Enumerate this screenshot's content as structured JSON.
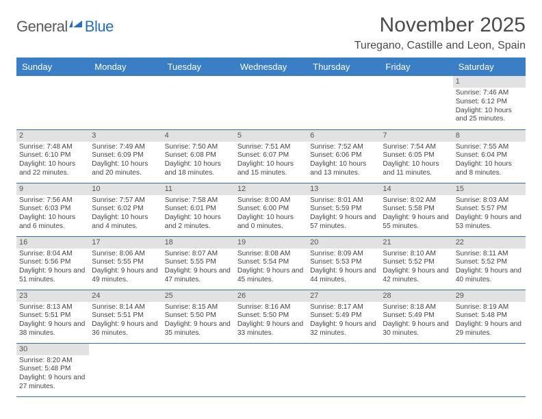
{
  "logo": {
    "part1": "General",
    "part2": "Blue"
  },
  "title": "November 2025",
  "location": "Turegano, Castille and Leon, Spain",
  "dayHeaders": [
    "Sunday",
    "Monday",
    "Tuesday",
    "Wednesday",
    "Thursday",
    "Friday",
    "Saturday"
  ],
  "colors": {
    "headerBg": "#3a7fc5",
    "accent": "#2a6db8",
    "dayBarBg": "#e2e2e2"
  },
  "weeks": [
    [
      null,
      null,
      null,
      null,
      null,
      null,
      {
        "n": "1",
        "sunrise": "7:46 AM",
        "sunset": "6:12 PM",
        "daylight": "10 hours and 25 minutes."
      }
    ],
    [
      {
        "n": "2",
        "sunrise": "7:48 AM",
        "sunset": "6:10 PM",
        "daylight": "10 hours and 22 minutes."
      },
      {
        "n": "3",
        "sunrise": "7:49 AM",
        "sunset": "6:09 PM",
        "daylight": "10 hours and 20 minutes."
      },
      {
        "n": "4",
        "sunrise": "7:50 AM",
        "sunset": "6:08 PM",
        "daylight": "10 hours and 18 minutes."
      },
      {
        "n": "5",
        "sunrise": "7:51 AM",
        "sunset": "6:07 PM",
        "daylight": "10 hours and 15 minutes."
      },
      {
        "n": "6",
        "sunrise": "7:52 AM",
        "sunset": "6:06 PM",
        "daylight": "10 hours and 13 minutes."
      },
      {
        "n": "7",
        "sunrise": "7:54 AM",
        "sunset": "6:05 PM",
        "daylight": "10 hours and 11 minutes."
      },
      {
        "n": "8",
        "sunrise": "7:55 AM",
        "sunset": "6:04 PM",
        "daylight": "10 hours and 8 minutes."
      }
    ],
    [
      {
        "n": "9",
        "sunrise": "7:56 AM",
        "sunset": "6:03 PM",
        "daylight": "10 hours and 6 minutes."
      },
      {
        "n": "10",
        "sunrise": "7:57 AM",
        "sunset": "6:02 PM",
        "daylight": "10 hours and 4 minutes."
      },
      {
        "n": "11",
        "sunrise": "7:58 AM",
        "sunset": "6:01 PM",
        "daylight": "10 hours and 2 minutes."
      },
      {
        "n": "12",
        "sunrise": "8:00 AM",
        "sunset": "6:00 PM",
        "daylight": "10 hours and 0 minutes."
      },
      {
        "n": "13",
        "sunrise": "8:01 AM",
        "sunset": "5:59 PM",
        "daylight": "9 hours and 57 minutes."
      },
      {
        "n": "14",
        "sunrise": "8:02 AM",
        "sunset": "5:58 PM",
        "daylight": "9 hours and 55 minutes."
      },
      {
        "n": "15",
        "sunrise": "8:03 AM",
        "sunset": "5:57 PM",
        "daylight": "9 hours and 53 minutes."
      }
    ],
    [
      {
        "n": "16",
        "sunrise": "8:04 AM",
        "sunset": "5:56 PM",
        "daylight": "9 hours and 51 minutes."
      },
      {
        "n": "17",
        "sunrise": "8:06 AM",
        "sunset": "5:55 PM",
        "daylight": "9 hours and 49 minutes."
      },
      {
        "n": "18",
        "sunrise": "8:07 AM",
        "sunset": "5:55 PM",
        "daylight": "9 hours and 47 minutes."
      },
      {
        "n": "19",
        "sunrise": "8:08 AM",
        "sunset": "5:54 PM",
        "daylight": "9 hours and 45 minutes."
      },
      {
        "n": "20",
        "sunrise": "8:09 AM",
        "sunset": "5:53 PM",
        "daylight": "9 hours and 44 minutes."
      },
      {
        "n": "21",
        "sunrise": "8:10 AM",
        "sunset": "5:52 PM",
        "daylight": "9 hours and 42 minutes."
      },
      {
        "n": "22",
        "sunrise": "8:11 AM",
        "sunset": "5:52 PM",
        "daylight": "9 hours and 40 minutes."
      }
    ],
    [
      {
        "n": "23",
        "sunrise": "8:13 AM",
        "sunset": "5:51 PM",
        "daylight": "9 hours and 38 minutes."
      },
      {
        "n": "24",
        "sunrise": "8:14 AM",
        "sunset": "5:51 PM",
        "daylight": "9 hours and 36 minutes."
      },
      {
        "n": "25",
        "sunrise": "8:15 AM",
        "sunset": "5:50 PM",
        "daylight": "9 hours and 35 minutes."
      },
      {
        "n": "26",
        "sunrise": "8:16 AM",
        "sunset": "5:50 PM",
        "daylight": "9 hours and 33 minutes."
      },
      {
        "n": "27",
        "sunrise": "8:17 AM",
        "sunset": "5:49 PM",
        "daylight": "9 hours and 32 minutes."
      },
      {
        "n": "28",
        "sunrise": "8:18 AM",
        "sunset": "5:49 PM",
        "daylight": "9 hours and 30 minutes."
      },
      {
        "n": "29",
        "sunrise": "8:19 AM",
        "sunset": "5:48 PM",
        "daylight": "9 hours and 29 minutes."
      }
    ],
    [
      {
        "n": "30",
        "sunrise": "8:20 AM",
        "sunset": "5:48 PM",
        "daylight": "9 hours and 27 minutes."
      },
      null,
      null,
      null,
      null,
      null,
      null
    ]
  ],
  "labels": {
    "sunrise": "Sunrise:",
    "sunset": "Sunset:",
    "daylight": "Daylight:"
  }
}
